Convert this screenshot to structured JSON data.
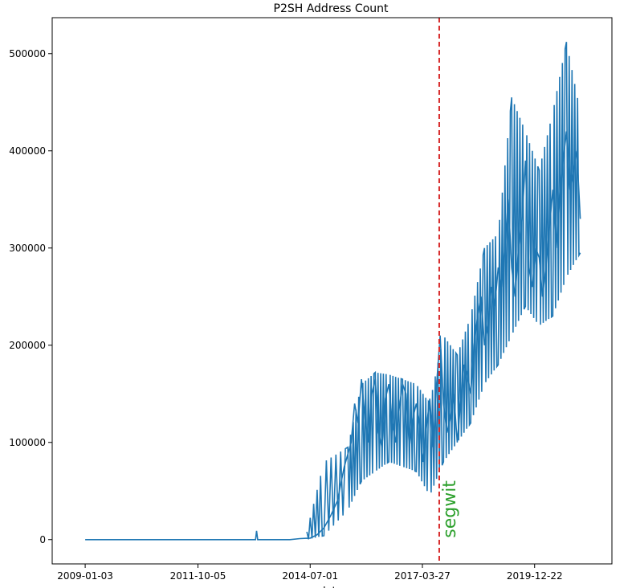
{
  "chart_data": {
    "type": "line",
    "title": "P2SH Address Count",
    "xlabel": "date",
    "ylabel": "",
    "x_type": "date",
    "xlim": [
      "2008-03-15",
      "2021-11-10"
    ],
    "ylim": [
      -25000,
      537000
    ],
    "x_ticks": [
      "2009-01-03",
      "2011-10-05",
      "2014-07-01",
      "2017-03-27",
      "2019-12-22"
    ],
    "y_ticks": [
      0,
      100000,
      200000,
      300000,
      400000,
      500000
    ],
    "y_tick_labels": [
      "0",
      "100000",
      "200000",
      "300000",
      "400000",
      "500000"
    ],
    "grid": false,
    "legend": "none",
    "series": [
      {
        "color": "#1f77b4",
        "x": [
          "2009-01-03",
          "2010-06-01",
          "2011-06-01",
          "2012-06-01",
          "2013-03-01",
          "2013-03-10",
          "2013-03-20",
          "2013-06-01",
          "2014-01-01",
          "2014-04-01",
          "2014-07-01",
          "2014-09-01",
          "2014-11-01",
          "2015-01-01",
          "2015-03-01",
          "2015-05-01",
          "2015-07-01",
          "2015-08-01",
          "2015-09-01",
          "2015-10-01",
          "2015-11-01",
          "2015-12-01",
          "2016-01-01",
          "2016-02-01",
          "2016-03-01",
          "2016-04-01",
          "2016-05-01",
          "2016-06-01",
          "2016-07-01",
          "2016-08-01",
          "2016-09-01",
          "2016-10-01",
          "2016-11-01",
          "2016-12-01",
          "2017-01-01",
          "2017-02-01",
          "2017-03-01",
          "2017-04-01",
          "2017-05-01",
          "2017-06-01",
          "2017-07-01",
          "2017-08-01",
          "2017-09-01",
          "2017-10-01",
          "2017-11-01",
          "2017-12-01",
          "2018-01-01",
          "2018-02-01",
          "2018-03-01",
          "2018-04-01",
          "2018-05-01",
          "2018-06-01",
          "2018-07-01",
          "2018-08-01",
          "2018-09-01",
          "2018-10-01",
          "2018-11-01",
          "2018-12-01",
          "2019-01-01",
          "2019-02-01",
          "2019-03-01",
          "2019-04-01",
          "2019-05-01",
          "2019-06-01",
          "2019-07-01",
          "2019-08-01",
          "2019-09-01",
          "2019-10-01",
          "2019-11-01",
          "2019-12-01",
          "2020-01-01",
          "2020-02-01",
          "2020-03-01",
          "2020-04-01",
          "2020-05-01",
          "2020-06-01",
          "2020-07-01",
          "2020-08-01",
          "2020-09-01",
          "2020-10-01",
          "2020-11-01",
          "2020-12-01",
          "2021-01-01",
          "2021-02-01"
        ],
        "y": [
          0,
          0,
          0,
          0,
          0,
          9000,
          0,
          0,
          0,
          1000,
          1500,
          5000,
          12000,
          25000,
          40000,
          75000,
          100000,
          140000,
          120000,
          165000,
          125000,
          100000,
          150000,
          165000,
          110000,
          95000,
          145000,
          160000,
          120000,
          100000,
          135000,
          160000,
          150000,
          95000,
          125000,
          140000,
          120000,
          80000,
          115000,
          145000,
          95000,
          160000,
          210000,
          140000,
          110000,
          125000,
          150000,
          100000,
          140000,
          180000,
          170000,
          150000,
          200000,
          230000,
          250000,
          200000,
          220000,
          260000,
          240000,
          280000,
          260000,
          300000,
          350000,
          280000,
          250000,
          300000,
          330000,
          390000,
          280000,
          260000,
          300000,
          290000,
          250000,
          280000,
          320000,
          360000,
          300000,
          350000,
          390000,
          420000,
          360000,
          380000,
          400000,
          330000
        ]
      },
      {
        "color": "#1f77b4",
        "x": [
          "2014-06-01",
          "2014-11-01",
          "2015-06-01",
          "2015-10-01",
          "2016-02-01",
          "2016-06-01",
          "2016-10-01",
          "2017-02-01",
          "2017-06-01",
          "2017-10-01",
          "2018-02-01",
          "2018-06-01",
          "2018-10-01",
          "2019-02-01",
          "2019-06-01",
          "2019-10-01",
          "2020-02-01",
          "2020-06-01",
          "2020-10-01",
          "2021-02-01"
        ],
        "y_low": [
          0,
          4000,
          30000,
          60000,
          70000,
          80000,
          75000,
          70000,
          45000,
          80000,
          100000,
          120000,
          160000,
          180000,
          210000,
          240000,
          220000,
          230000,
          270000,
          295000
        ],
        "y_high": [
          8000,
          80000,
          95000,
          160000,
          172000,
          170000,
          165000,
          160000,
          140000,
          210000,
          190000,
          230000,
          300000,
          315000,
          455000,
          420000,
          380000,
          440000,
          512000,
          440000
        ]
      }
    ],
    "vlines": [
      {
        "x": "2017-08-24",
        "color": "#d62728",
        "style": "dashed"
      }
    ],
    "annotations": [
      {
        "text": "segwit",
        "x": "2017-08-24",
        "y": 0,
        "rotation": 90,
        "color": "#2ca02c"
      }
    ]
  }
}
